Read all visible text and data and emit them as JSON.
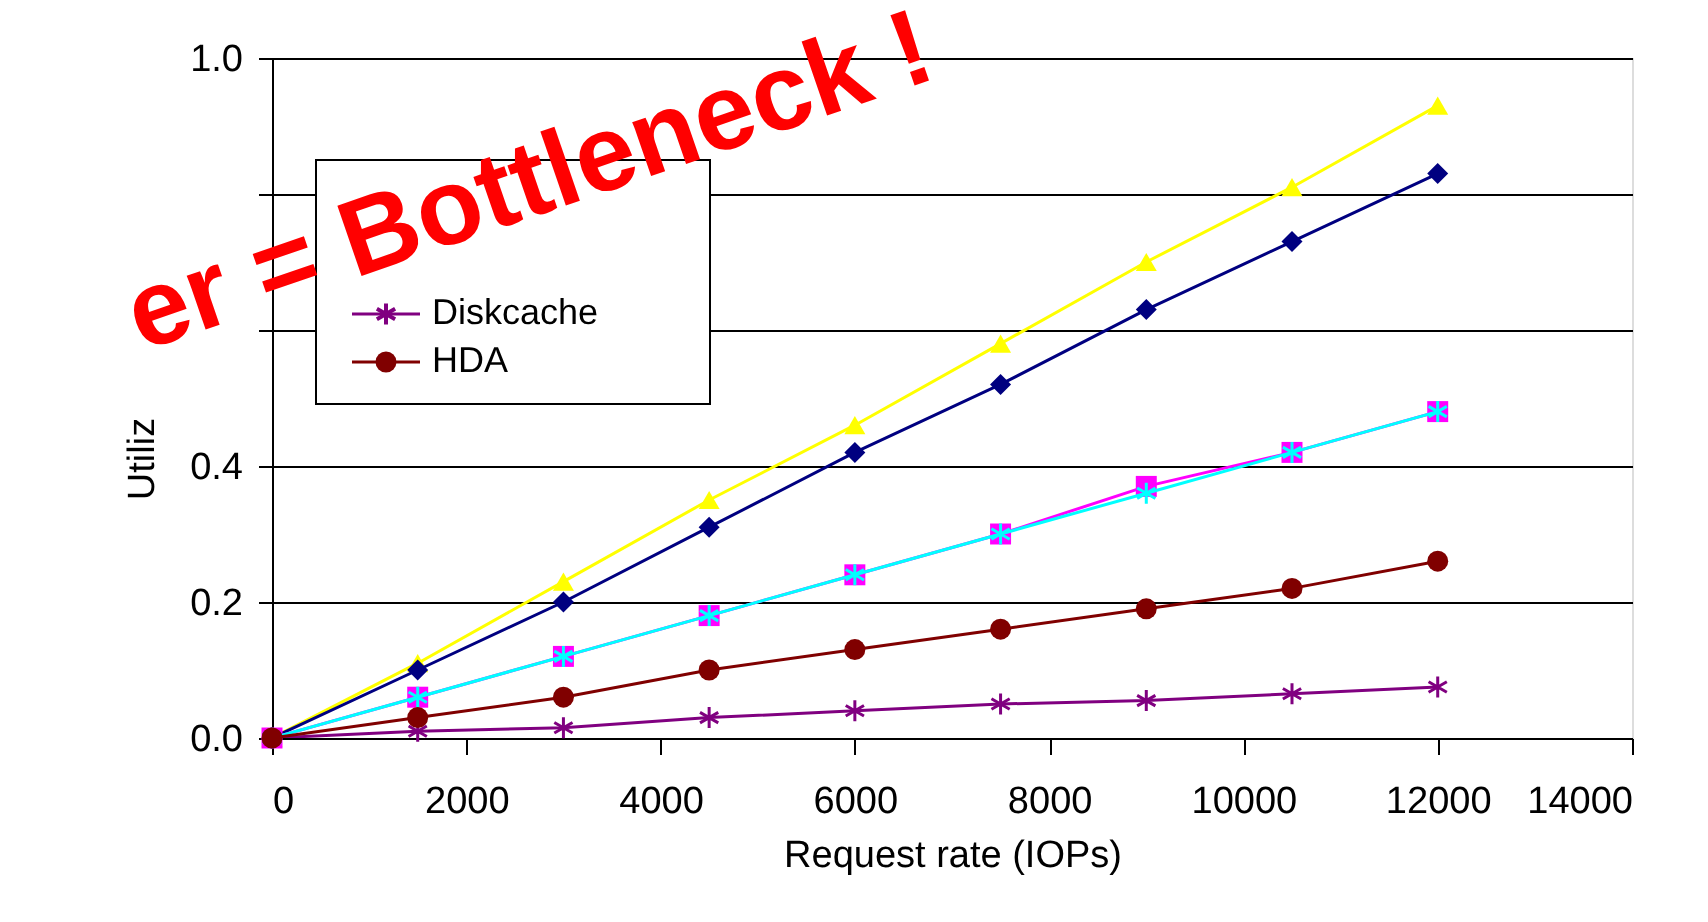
{
  "chart_data": {
    "type": "line",
    "xlabel": "Request rate (IOPs)",
    "ylabel": "Utiliz",
    "x": [
      0,
      1500,
      3000,
      4500,
      6000,
      7500,
      9000,
      10500,
      12000
    ],
    "series": [
      {
        "color": "#ffff00",
        "marker": "triangle",
        "values": [
          0,
          0.11,
          0.23,
          0.35,
          0.46,
          0.58,
          0.7,
          0.81,
          0.93
        ]
      },
      {
        "color": "#000080",
        "marker": "diamond",
        "values": [
          0,
          0.1,
          0.2,
          0.31,
          0.42,
          0.52,
          0.63,
          0.73,
          0.83
        ]
      },
      {
        "color": "#ff00ff",
        "marker": "square",
        "values": [
          0,
          0.06,
          0.12,
          0.18,
          0.24,
          0.3,
          0.37,
          0.42,
          0.48
        ]
      },
      {
        "color": "#00ffff",
        "marker": "cross",
        "values": [
          0,
          0.06,
          0.12,
          0.18,
          0.24,
          0.3,
          0.36,
          0.42,
          0.48
        ]
      },
      {
        "name": "Diskcache",
        "color": "#800080",
        "marker": "cross",
        "values": [
          0,
          0.01,
          0.015,
          0.03,
          0.04,
          0.05,
          0.055,
          0.065,
          0.075
        ]
      },
      {
        "name": "HDA",
        "color": "#800000",
        "marker": "circle",
        "values": [
          0,
          0.03,
          0.06,
          0.1,
          0.13,
          0.16,
          0.19,
          0.22,
          0.26
        ]
      }
    ],
    "xlim": [
      0,
      14000
    ],
    "xticks": [
      0,
      2000,
      4000,
      6000,
      8000,
      10000,
      12000,
      14000
    ],
    "ylim": [
      0,
      1.0
    ],
    "yticks": [
      {
        "value": 0,
        "label": "0.0"
      },
      {
        "value": 0.2,
        "label": "0.2"
      },
      {
        "value": 0.4,
        "label": "0.4"
      },
      {
        "value": 0.6,
        "label": null
      },
      {
        "value": 0.8,
        "label": null
      },
      {
        "value": 1.0,
        "label": "1.0"
      }
    ],
    "grid": "y",
    "legend": "top left",
    "line_style": "solid",
    "annotations": [
      "er = Bottleneck !"
    ]
  }
}
